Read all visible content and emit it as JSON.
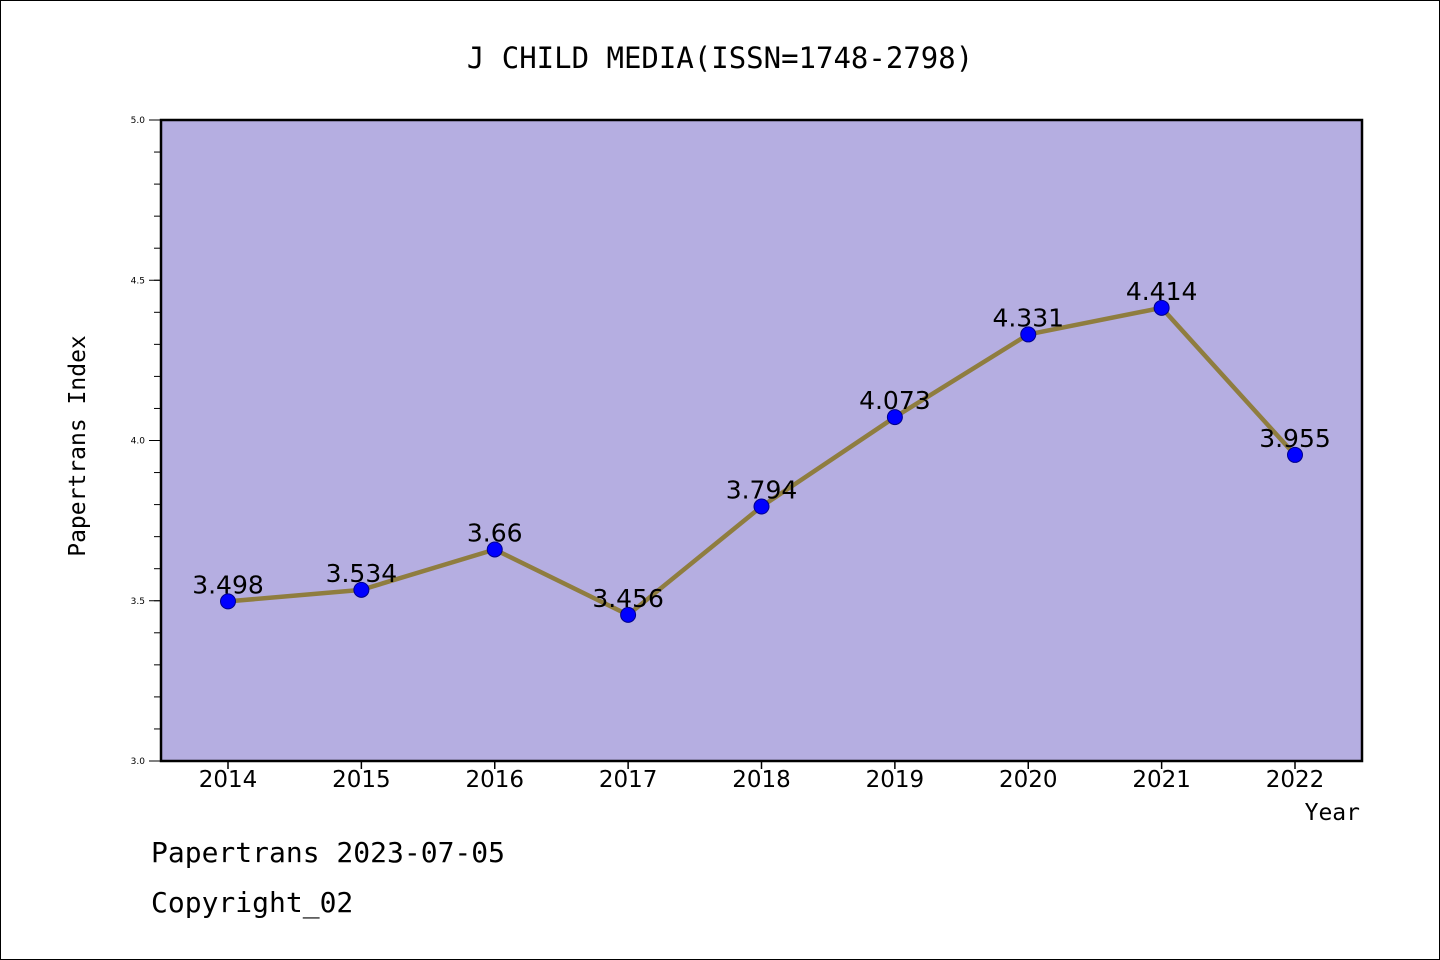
{
  "chart_data": {
    "type": "line",
    "title": "J CHILD MEDIA(ISSN=1748-2798)",
    "xlabel": "Year",
    "ylabel": "Papertrans Index",
    "categories": [
      "2014",
      "2015",
      "2016",
      "2017",
      "2018",
      "2019",
      "2020",
      "2021",
      "2022"
    ],
    "series": [
      {
        "values": [
          3.498,
          3.534,
          3.66,
          3.456,
          3.794,
          4.073,
          4.331,
          4.414,
          3.955
        ],
        "labels": [
          "3.498",
          "3.534",
          "3.66",
          "3.456",
          "3.794",
          "4.073",
          "4.331",
          "4.414",
          "3.955"
        ]
      }
    ],
    "ylim": [
      3.0,
      5.0
    ],
    "yticks": [
      "3.0",
      "3.5",
      "4.0",
      "4.5",
      "5.0"
    ],
    "grid": false,
    "colors": {
      "plot_bg": "#b5aee1",
      "line": "#8f7d3f",
      "marker": "#0000ff"
    }
  },
  "footer": {
    "date_line": "Papertrans 2023-07-05",
    "copyright": "Copyright_02"
  }
}
